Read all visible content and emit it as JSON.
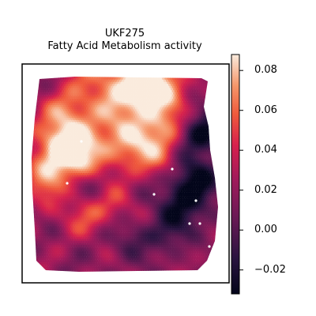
{
  "chart_data": {
    "type": "heatmap",
    "title": "UKF275",
    "subtitle": "Fatty Acid Metabolism activity",
    "xlabel": "",
    "ylabel": "",
    "grid": false,
    "legend": "colorbar-right",
    "colormap": "rocket",
    "colorbar": {
      "vmin": -0.032,
      "vmax": 0.088,
      "ticks": [
        0.08,
        0.06,
        0.04,
        0.02,
        0.0,
        -0.02
      ],
      "tick_labels": [
        "0.08",
        "0.06",
        "0.04",
        "0.02",
        "0.00",
        "−0.02"
      ]
    },
    "colors": {
      "low": "#03051a",
      "mid_dark": "#4c1d4b",
      "mid": "#a11a5b",
      "mid_high": "#e83f3f",
      "high": "#f6aa82",
      "max": "#faebdd",
      "highlight_spot": "#ffffff"
    }
  }
}
